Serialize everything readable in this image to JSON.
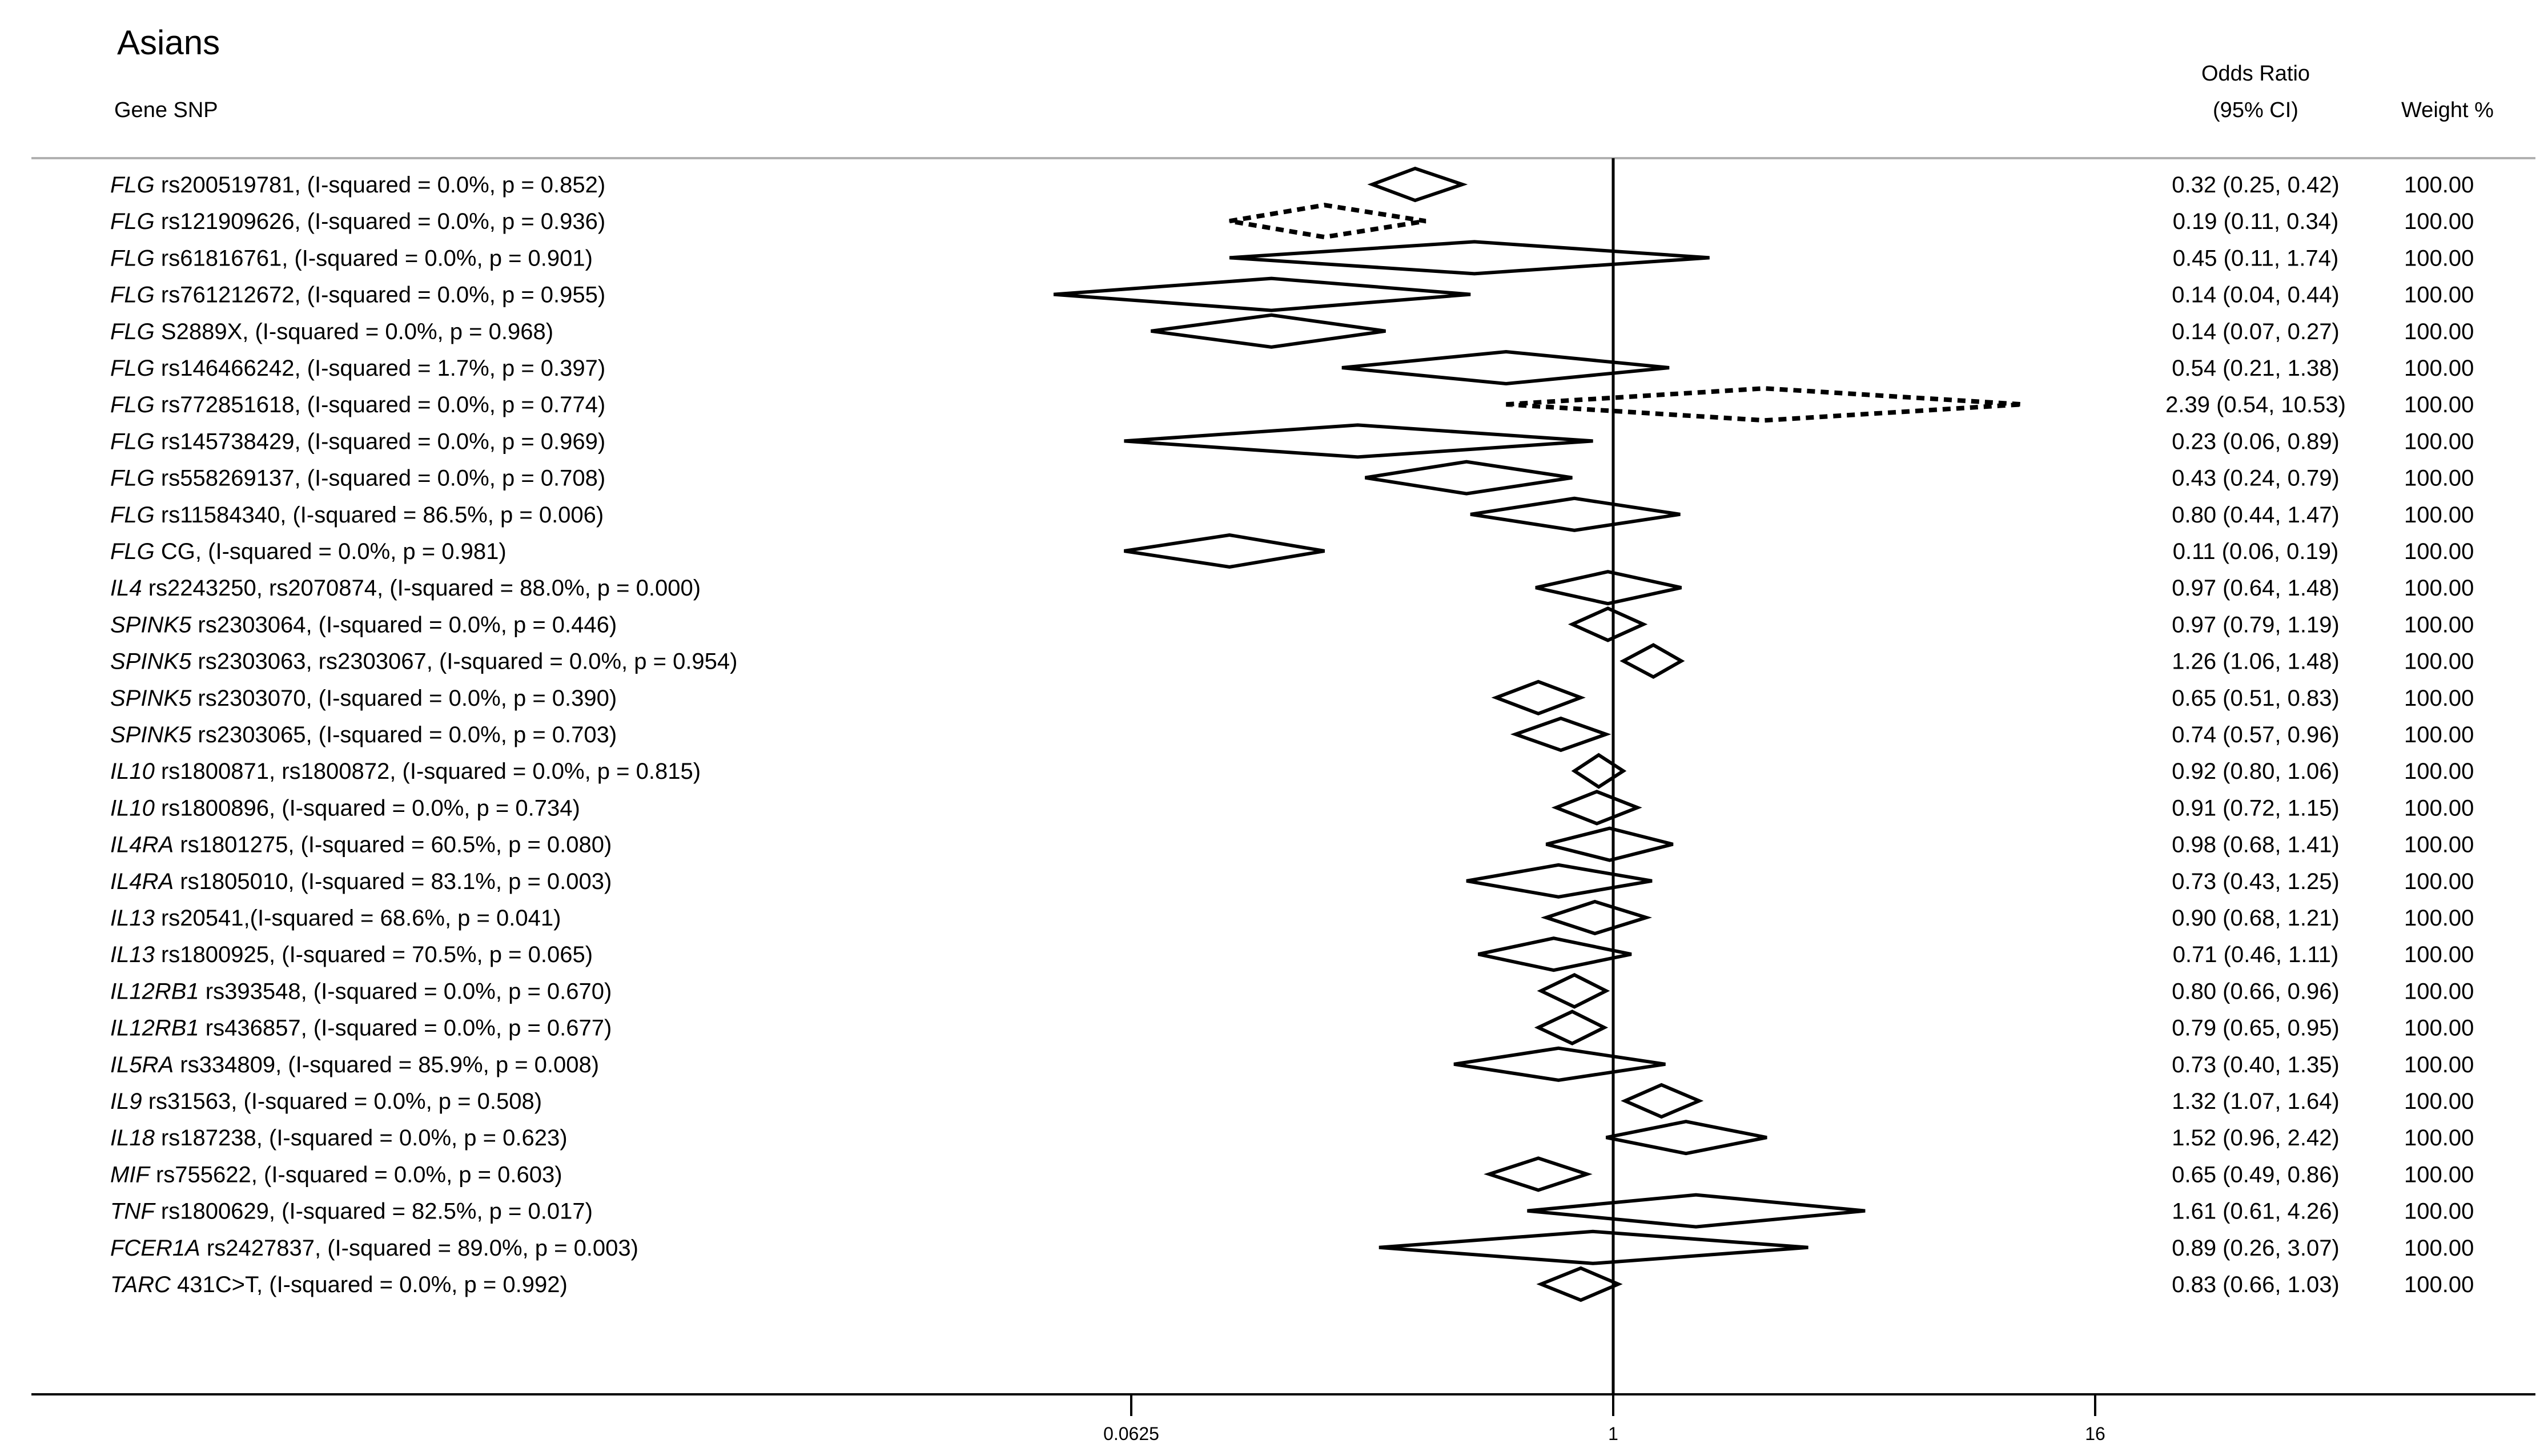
{
  "chart_data": {
    "type": "forest",
    "title": "Asians",
    "headers": {
      "study": "Gene SNP",
      "or_line1": "Odds Ratio",
      "or_line2": "(95% CI)",
      "weight": "Weight %"
    },
    "x_scale": "log2",
    "xlim": [
      0.0098,
      83
    ],
    "reference_line": 1,
    "ticks": [
      {
        "value": 0.0625,
        "label": "0.0625"
      },
      {
        "value": 1,
        "label": "1"
      },
      {
        "value": 16,
        "label": "16"
      }
    ],
    "rows": [
      {
        "gene": "FLG",
        "snp": " rs200519781, (I-squared = 0.0%, p = 0.852)",
        "or": 0.32,
        "lo": 0.25,
        "hi": 0.42,
        "ci_text": "0.32 (0.25, 0.42)",
        "weight": "100.00",
        "dashed": false
      },
      {
        "gene": "FLG",
        "snp": " rs121909626, (I-squared = 0.0%, p = 0.936)",
        "or": 0.19,
        "lo": 0.11,
        "hi": 0.34,
        "ci_text": "0.19 (0.11, 0.34)",
        "weight": "100.00",
        "dashed": true
      },
      {
        "gene": "FLG",
        "snp": " rs61816761, (I-squared = 0.0%, p = 0.901)",
        "or": 0.45,
        "lo": 0.11,
        "hi": 1.74,
        "ci_text": "0.45 (0.11, 1.74)",
        "weight": "100.00",
        "dashed": false
      },
      {
        "gene": "FLG",
        "snp": " rs761212672, (I-squared = 0.0%, p = 0.955)",
        "or": 0.14,
        "lo": 0.04,
        "hi": 0.44,
        "ci_text": "0.14 (0.04, 0.44)",
        "weight": "100.00",
        "dashed": false
      },
      {
        "gene": "FLG",
        "snp": " S2889X, (I-squared = 0.0%, p = 0.968)",
        "or": 0.14,
        "lo": 0.07,
        "hi": 0.27,
        "ci_text": "0.14 (0.07, 0.27)",
        "weight": "100.00",
        "dashed": false
      },
      {
        "gene": "FLG",
        "snp": " rs146466242, (I-squared = 1.7%, p = 0.397)",
        "or": 0.54,
        "lo": 0.21,
        "hi": 1.38,
        "ci_text": "0.54 (0.21, 1.38)",
        "weight": "100.00",
        "dashed": false
      },
      {
        "gene": "FLG",
        "snp": " rs772851618, (I-squared = 0.0%, p = 0.774)",
        "or": 2.39,
        "lo": 0.54,
        "hi": 10.53,
        "ci_text": "2.39 (0.54, 10.53)",
        "weight": "100.00",
        "dashed": true
      },
      {
        "gene": "FLG",
        "snp": " rs145738429, (I-squared = 0.0%, p = 0.969)",
        "or": 0.23,
        "lo": 0.06,
        "hi": 0.89,
        "ci_text": "0.23 (0.06, 0.89)",
        "weight": "100.00",
        "dashed": false
      },
      {
        "gene": "FLG",
        "snp": " rs558269137, (I-squared = 0.0%, p = 0.708)",
        "or": 0.43,
        "lo": 0.24,
        "hi": 0.79,
        "ci_text": "0.43 (0.24, 0.79)",
        "weight": "100.00",
        "dashed": false
      },
      {
        "gene": "FLG",
        "snp": " rs11584340, (I-squared = 86.5%, p = 0.006)",
        "or": 0.8,
        "lo": 0.44,
        "hi": 1.47,
        "ci_text": "0.80 (0.44, 1.47)",
        "weight": "100.00",
        "dashed": false
      },
      {
        "gene": "FLG",
        "snp": " CG, (I-squared = 0.0%, p = 0.981)",
        "or": 0.11,
        "lo": 0.06,
        "hi": 0.19,
        "ci_text": "0.11 (0.06, 0.19)",
        "weight": "100.00",
        "dashed": false
      },
      {
        "gene": "IL4",
        "snp": " rs2243250, rs2070874, (I-squared = 88.0%, p = 0.000)",
        "or": 0.97,
        "lo": 0.64,
        "hi": 1.48,
        "ci_text": "0.97 (0.64, 1.48)",
        "weight": "100.00",
        "dashed": false
      },
      {
        "gene": "SPINK5",
        "snp": " rs2303064, (I-squared = 0.0%, p = 0.446)",
        "or": 0.97,
        "lo": 0.79,
        "hi": 1.19,
        "ci_text": "0.97 (0.79, 1.19)",
        "weight": "100.00",
        "dashed": false
      },
      {
        "gene": "SPINK5",
        "snp": " rs2303063, rs2303067, (I-squared = 0.0%, p = 0.954)",
        "or": 1.26,
        "lo": 1.06,
        "hi": 1.48,
        "ci_text": "1.26 (1.06, 1.48)",
        "weight": "100.00",
        "dashed": false
      },
      {
        "gene": "SPINK5",
        "snp": " rs2303070, (I-squared = 0.0%, p = 0.390)",
        "or": 0.65,
        "lo": 0.51,
        "hi": 0.83,
        "ci_text": "0.65 (0.51, 0.83)",
        "weight": "100.00",
        "dashed": false
      },
      {
        "gene": "SPINK5",
        "snp": " rs2303065, (I-squared = 0.0%, p = 0.703)",
        "or": 0.74,
        "lo": 0.57,
        "hi": 0.96,
        "ci_text": "0.74 (0.57, 0.96)",
        "weight": "100.00",
        "dashed": false
      },
      {
        "gene": "IL10",
        "snp": " rs1800871, rs1800872, (I-squared = 0.0%, p = 0.815)",
        "or": 0.92,
        "lo": 0.8,
        "hi": 1.06,
        "ci_text": "0.92 (0.80, 1.06)",
        "weight": "100.00",
        "dashed": false
      },
      {
        "gene": "IL10",
        "snp": " rs1800896, (I-squared = 0.0%, p = 0.734)",
        "or": 0.91,
        "lo": 0.72,
        "hi": 1.15,
        "ci_text": "0.91 (0.72, 1.15)",
        "weight": "100.00",
        "dashed": false
      },
      {
        "gene": "IL4RA",
        "snp": " rs1801275, (I-squared = 60.5%, p = 0.080)",
        "or": 0.98,
        "lo": 0.68,
        "hi": 1.41,
        "ci_text": "0.98 (0.68, 1.41)",
        "weight": "100.00",
        "dashed": false
      },
      {
        "gene": "IL4RA",
        "snp": " rs1805010, (I-squared = 83.1%, p = 0.003)",
        "or": 0.73,
        "lo": 0.43,
        "hi": 1.25,
        "ci_text": "0.73 (0.43, 1.25)",
        "weight": "100.00",
        "dashed": false
      },
      {
        "gene": "IL13",
        "snp": " rs20541,(I-squared = 68.6%, p = 0.041)",
        "or": 0.9,
        "lo": 0.68,
        "hi": 1.21,
        "ci_text": "0.90 (0.68, 1.21)",
        "weight": "100.00",
        "dashed": false
      },
      {
        "gene": "IL13",
        "snp": " rs1800925, (I-squared = 70.5%, p = 0.065)",
        "or": 0.71,
        "lo": 0.46,
        "hi": 1.11,
        "ci_text": "0.71 (0.46, 1.11)",
        "weight": "100.00",
        "dashed": false
      },
      {
        "gene": "IL12RB1",
        "snp": " rs393548, (I-squared = 0.0%, p = 0.670)",
        "or": 0.8,
        "lo": 0.66,
        "hi": 0.96,
        "ci_text": "0.80 (0.66, 0.96)",
        "weight": "100.00",
        "dashed": false
      },
      {
        "gene": "IL12RB1",
        "snp": " rs436857, (I-squared = 0.0%, p = 0.677)",
        "or": 0.79,
        "lo": 0.65,
        "hi": 0.95,
        "ci_text": "0.79 (0.65, 0.95)",
        "weight": "100.00",
        "dashed": false
      },
      {
        "gene": "IL5RA",
        "snp": " rs334809, (I-squared = 85.9%, p = 0.008)",
        "or": 0.73,
        "lo": 0.4,
        "hi": 1.35,
        "ci_text": "0.73 (0.40, 1.35)",
        "weight": "100.00",
        "dashed": false
      },
      {
        "gene": "IL9",
        "snp": " rs31563, (I-squared = 0.0%, p = 0.508)",
        "or": 1.32,
        "lo": 1.07,
        "hi": 1.64,
        "ci_text": "1.32 (1.07, 1.64)",
        "weight": "100.00",
        "dashed": false
      },
      {
        "gene": "IL18",
        "snp": " rs187238, (I-squared = 0.0%, p = 0.623)",
        "or": 1.52,
        "lo": 0.96,
        "hi": 2.42,
        "ci_text": "1.52 (0.96, 2.42)",
        "weight": "100.00",
        "dashed": false
      },
      {
        "gene": "MIF",
        "snp": " rs755622, (I-squared = 0.0%, p = 0.603)",
        "or": 0.65,
        "lo": 0.49,
        "hi": 0.86,
        "ci_text": "0.65 (0.49, 0.86)",
        "weight": "100.00",
        "dashed": false
      },
      {
        "gene": "TNF",
        "snp": " rs1800629, (I-squared = 82.5%, p = 0.017)",
        "or": 1.61,
        "lo": 0.61,
        "hi": 4.26,
        "ci_text": "1.61 (0.61, 4.26)",
        "weight": "100.00",
        "dashed": false
      },
      {
        "gene": "FCER1A",
        "snp": " rs2427837, (I-squared = 89.0%, p = 0.003)",
        "or": 0.89,
        "lo": 0.26,
        "hi": 3.07,
        "ci_text": "0.89 (0.26, 3.07)",
        "weight": "100.00",
        "dashed": false
      },
      {
        "gene": "TARC",
        "snp": " 431C>T, (I-squared = 0.0%, p = 0.992)",
        "or": 0.83,
        "lo": 0.66,
        "hi": 1.03,
        "ci_text": "0.83 (0.66, 1.03)",
        "weight": "100.00",
        "dashed": false
      }
    ]
  }
}
